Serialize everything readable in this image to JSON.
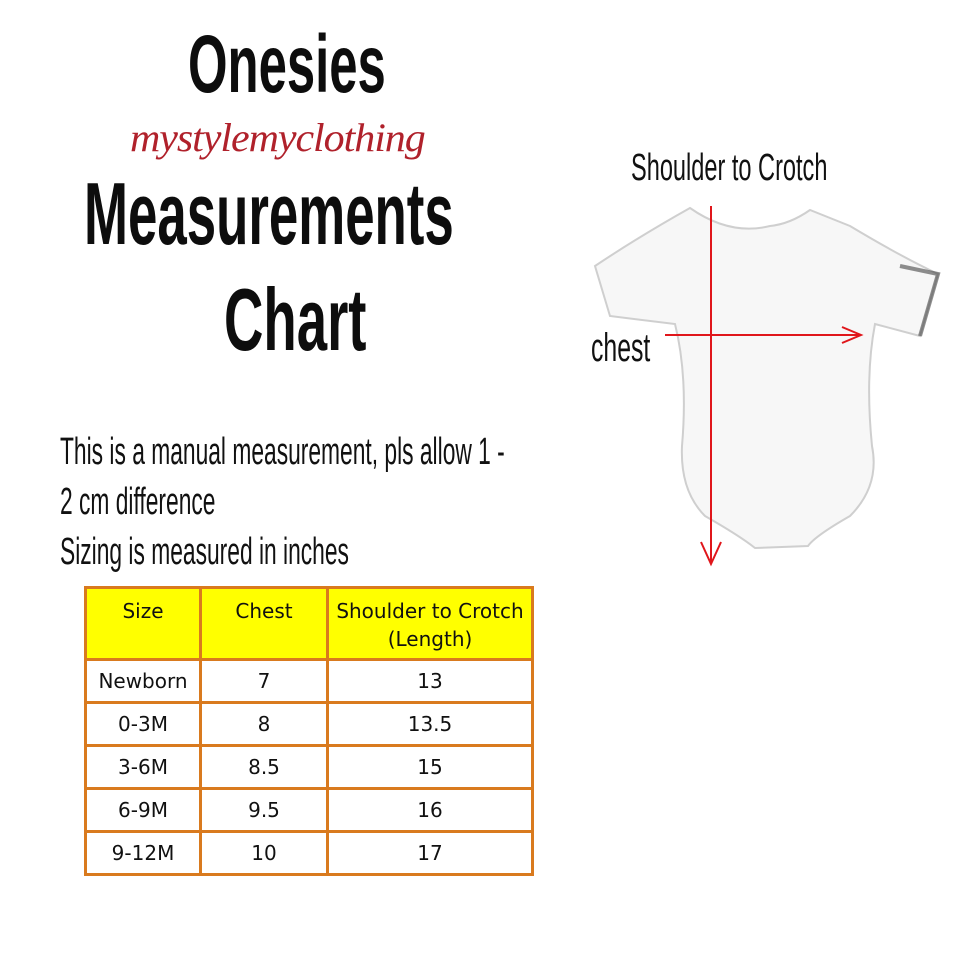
{
  "title": {
    "line1": "Onesies",
    "line2": "Measurements",
    "line3": "Chart"
  },
  "watermark": "mystylemyclothing",
  "notes": {
    "line1": "This is a manual measurement, pls allow 1 -",
    "line2": "2 cm difference",
    "line3": "Sizing is measured in inches"
  },
  "diagram": {
    "length_label": "Shoulder to Crotch",
    "chest_label": "chest",
    "arrow_color": "#e0161b"
  },
  "table": {
    "header_color": "#ffff00",
    "border_color": "#d97a1e",
    "headers": [
      "Size",
      "Chest",
      "Shoulder to Crotch (Length)"
    ],
    "rows": [
      [
        "Newborn",
        "7",
        "13"
      ],
      [
        "0-3M",
        "8",
        "13.5"
      ],
      [
        "3-6M",
        "8.5",
        "15"
      ],
      [
        "6-9M",
        "9.5",
        "16"
      ],
      [
        "9-12M",
        "10",
        "17"
      ]
    ]
  }
}
